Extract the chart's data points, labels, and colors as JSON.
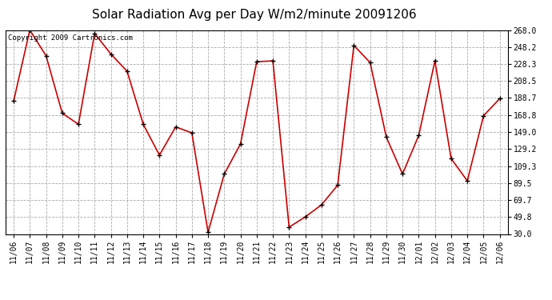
{
  "title": "Solar Radiation Avg per Day W/m2/minute 20091206",
  "copyright_text": "Copyright 2009 Cartronics.com",
  "x_labels": [
    "11/06",
    "11/07",
    "11/08",
    "11/09",
    "11/10",
    "11/11",
    "11/12",
    "11/13",
    "11/14",
    "11/15",
    "11/16",
    "11/17",
    "11/18",
    "11/19",
    "11/20",
    "11/21",
    "11/22",
    "11/23",
    "11/24",
    "11/25",
    "11/26",
    "11/27",
    "11/28",
    "11/29",
    "11/30",
    "12/01",
    "12/02",
    "12/03",
    "12/04",
    "12/05",
    "12/06"
  ],
  "y_values": [
    185.0,
    268.0,
    238.0,
    171.0,
    158.0,
    264.0,
    240.0,
    220.0,
    158.0,
    122.0,
    155.0,
    148.0,
    32.0,
    100.0,
    135.0,
    231.0,
    232.0,
    38.0,
    50.0,
    64.0,
    87.0,
    250.0,
    230.0,
    143.0,
    100.0,
    145.0,
    232.0,
    118.0,
    92.0,
    168.0,
    188.0
  ],
  "y_ticks": [
    30.0,
    49.8,
    69.7,
    89.5,
    109.3,
    129.2,
    149.0,
    168.8,
    188.7,
    208.5,
    228.3,
    248.2,
    268.0
  ],
  "y_min": 30.0,
  "y_max": 268.0,
  "line_color": "#cc0000",
  "marker_color": "#000000",
  "bg_color": "#ffffff",
  "plot_bg_color": "#ffffff",
  "grid_color": "#aaaaaa",
  "title_fontsize": 11,
  "tick_fontsize": 7,
  "copyright_fontsize": 6.5
}
